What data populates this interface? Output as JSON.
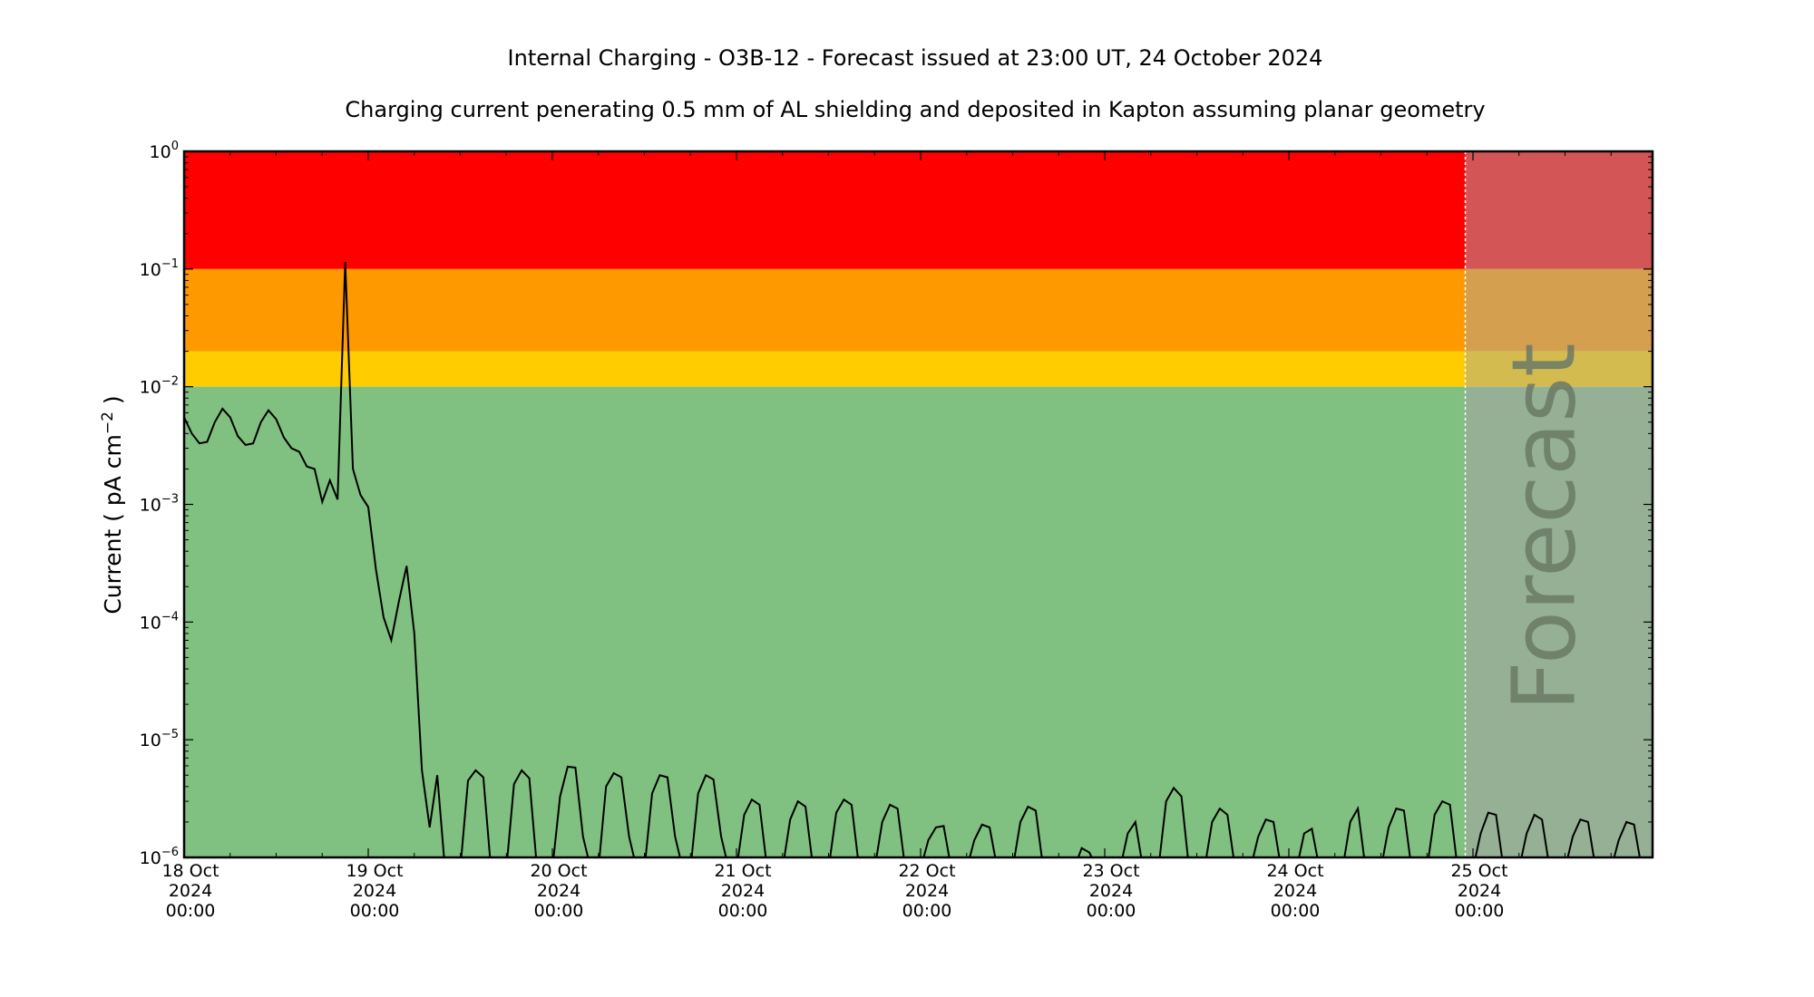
{
  "chart_data": {
    "type": "line",
    "title": "Internal Charging - O3B-12 - Forecast issued at 23:00 UT, 24 October 2024",
    "subtitle": "Charging current penerating 0.5 mm of AL shielding and deposited in Kapton assuming planar geometry",
    "ylabel": "Current ( pA cm^-2 )",
    "ylabel_parts": {
      "before": "Current ( pA cm",
      "sup": "−2",
      "after": " )"
    },
    "yscale": "log",
    "ylim": [
      1e-06,
      1
    ],
    "y_ticks": [
      {
        "value": 1,
        "exp": "0"
      },
      {
        "value": 0.1,
        "exp": "−1"
      },
      {
        "value": 0.01,
        "exp": "−2"
      },
      {
        "value": 0.001,
        "exp": "−3"
      },
      {
        "value": 0.0001,
        "exp": "−4"
      },
      {
        "value": 1e-05,
        "exp": "−5"
      },
      {
        "value": 1e-06,
        "exp": "−6"
      }
    ],
    "xlim": [
      "2024-10-18 00:00",
      "2024-10-25 23:00"
    ],
    "x_ticks": [
      {
        "t": "2024-10-18 00:00",
        "l1": "18 Oct",
        "l2": "2024",
        "l3": "00:00"
      },
      {
        "t": "2024-10-19 00:00",
        "l1": "19 Oct",
        "l2": "2024",
        "l3": "00:00"
      },
      {
        "t": "2024-10-20 00:00",
        "l1": "20 Oct",
        "l2": "2024",
        "l3": "00:00"
      },
      {
        "t": "2024-10-21 00:00",
        "l1": "21 Oct",
        "l2": "2024",
        "l3": "00:00"
      },
      {
        "t": "2024-10-22 00:00",
        "l1": "22 Oct",
        "l2": "2024",
        "l3": "00:00"
      },
      {
        "t": "2024-10-23 00:00",
        "l1": "23 Oct",
        "l2": "2024",
        "l3": "00:00"
      },
      {
        "t": "2024-10-24 00:00",
        "l1": "24 Oct",
        "l2": "2024",
        "l3": "00:00"
      },
      {
        "t": "2024-10-25 00:00",
        "l1": "25 Oct",
        "l2": "2024",
        "l3": "00:00"
      }
    ],
    "bands": [
      {
        "from": 0.1,
        "to": 1,
        "color": "#ff0000",
        "forecast_color": "#d35555"
      },
      {
        "from": 0.02,
        "to": 0.1,
        "color": "#ff9900",
        "forecast_color": "#d4a050"
      },
      {
        "from": 0.01,
        "to": 0.02,
        "color": "#ffcc00",
        "forecast_color": "#d3bb50"
      },
      {
        "from": 1e-06,
        "to": 0.01,
        "color": "#80c080",
        "forecast_color": "#95b095"
      }
    ],
    "forecast_start": "2024-10-24 23:00",
    "forecast_label": "Forecast",
    "line_color": "#000000",
    "series": [
      {
        "start": "2024-10-18 00:00",
        "step_hours": 1,
        "values": [
          0.0055,
          0.004,
          0.0033,
          0.0034,
          0.005,
          0.0065,
          0.0055,
          0.0038,
          0.0032,
          0.0033,
          0.005,
          0.0063,
          0.0053,
          0.0037,
          0.003,
          0.0028,
          0.0021,
          0.002,
          0.00105,
          0.0016,
          0.0011,
          0.115,
          0.002,
          0.0012,
          0.00095,
          0.00028,
          0.00011,
          7e-05,
          0.00015,
          0.0003,
          8e-05,
          5.5e-06,
          1.8e-06,
          5e-06,
          8e-07,
          8e-07,
          8e-07,
          4.5e-06,
          5.5e-06,
          4.8e-06,
          8e-07,
          8e-07,
          8e-07,
          4.2e-06,
          5.5e-06,
          4.7e-06,
          8e-07,
          8e-07,
          8e-07,
          3.3e-06,
          5.9e-06,
          5.8e-06,
          1.5e-06,
          8e-07,
          8e-07,
          4e-06,
          5.2e-06,
          4.8e-06,
          1.5e-06,
          8e-07,
          8e-07,
          3.5e-06,
          5e-06,
          4.8e-06,
          1.5e-06,
          8e-07,
          8e-07,
          3.5e-06,
          5e-06,
          4.6e-06,
          1.5e-06,
          8e-07,
          8e-07,
          2.3e-06,
          3.1e-06,
          2.8e-06,
          8e-07,
          8e-07,
          8e-07,
          2.1e-06,
          3e-06,
          2.7e-06,
          8e-07,
          8e-07,
          8e-07,
          2.4e-06,
          3.1e-06,
          2.8e-06,
          8e-07,
          8e-07,
          8e-07,
          2e-06,
          2.8e-06,
          2.6e-06,
          8e-07,
          8e-07,
          8e-07,
          1.4e-06,
          1.8e-06,
          1.85e-06,
          8e-07,
          8e-07,
          8e-07,
          1.4e-06,
          1.9e-06,
          1.8e-06,
          8e-07,
          8e-07,
          8e-07,
          2e-06,
          2.7e-06,
          2.5e-06,
          8e-07,
          8e-07,
          8e-07,
          8e-07,
          8e-07,
          1.2e-06,
          1.1e-06,
          8e-07,
          8e-07,
          8e-07,
          8e-07,
          1.6e-06,
          2e-06,
          8e-07,
          8e-07,
          8e-07,
          3e-06,
          3.9e-06,
          3.3e-06,
          8e-07,
          8e-07,
          8e-07,
          2e-06,
          2.6e-06,
          2.3e-06,
          8e-07,
          8e-07,
          8e-07,
          1.5e-06,
          2.1e-06,
          2e-06,
          8e-07,
          8e-07,
          8e-07,
          1.6e-06,
          1.75e-06,
          8e-07,
          8e-07,
          8e-07,
          8e-07,
          2e-06,
          2.6e-06,
          8e-07,
          8e-07,
          8e-07,
          1.8e-06,
          2.6e-06,
          2.5e-06,
          8e-07,
          8e-07,
          8e-07,
          2.3e-06,
          3e-06,
          2.8e-06,
          8e-07,
          8e-07,
          8e-07,
          1.6e-06,
          2.4e-06,
          2.3e-06,
          8e-07,
          8e-07,
          8e-07,
          1.6e-06,
          2.3e-06,
          2.1e-06,
          8e-07,
          8e-07,
          8e-07,
          1.5e-06,
          2.1e-06,
          2e-06,
          8e-07,
          8e-07,
          8e-07,
          1.4e-06,
          2e-06,
          1.9e-06,
          8e-07
        ]
      }
    ]
  }
}
